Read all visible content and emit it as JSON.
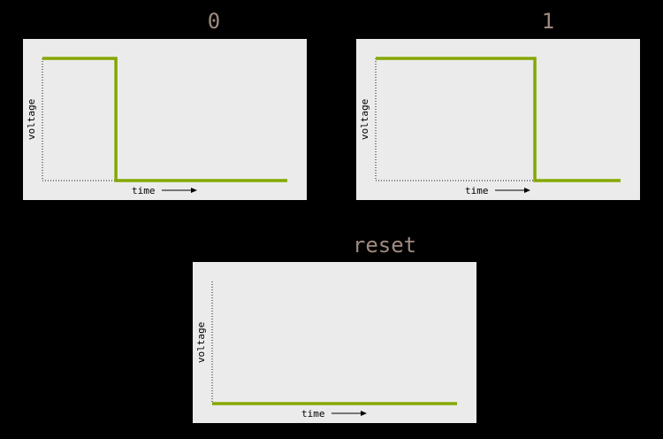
{
  "colors": {
    "background": "#000000",
    "panel": "#ebebeb",
    "signal": "#84a800",
    "title": "#a08a80"
  },
  "axes": {
    "ylabel": "voltage",
    "xlabel": "time"
  },
  "chart_data": [
    {
      "type": "line",
      "title": "0",
      "xlabel": "time",
      "ylabel": "voltage",
      "x": [
        0,
        0.3,
        0.3,
        1
      ],
      "y": [
        1,
        1,
        0,
        0
      ]
    },
    {
      "type": "line",
      "title": "1",
      "xlabel": "time",
      "ylabel": "voltage",
      "x": [
        0,
        0.65,
        0.65,
        1
      ],
      "y": [
        1,
        1,
        0,
        0
      ]
    },
    {
      "type": "line",
      "title": "reset",
      "xlabel": "time",
      "ylabel": "voltage",
      "x": [
        0,
        1
      ],
      "y": [
        0,
        0
      ]
    }
  ]
}
